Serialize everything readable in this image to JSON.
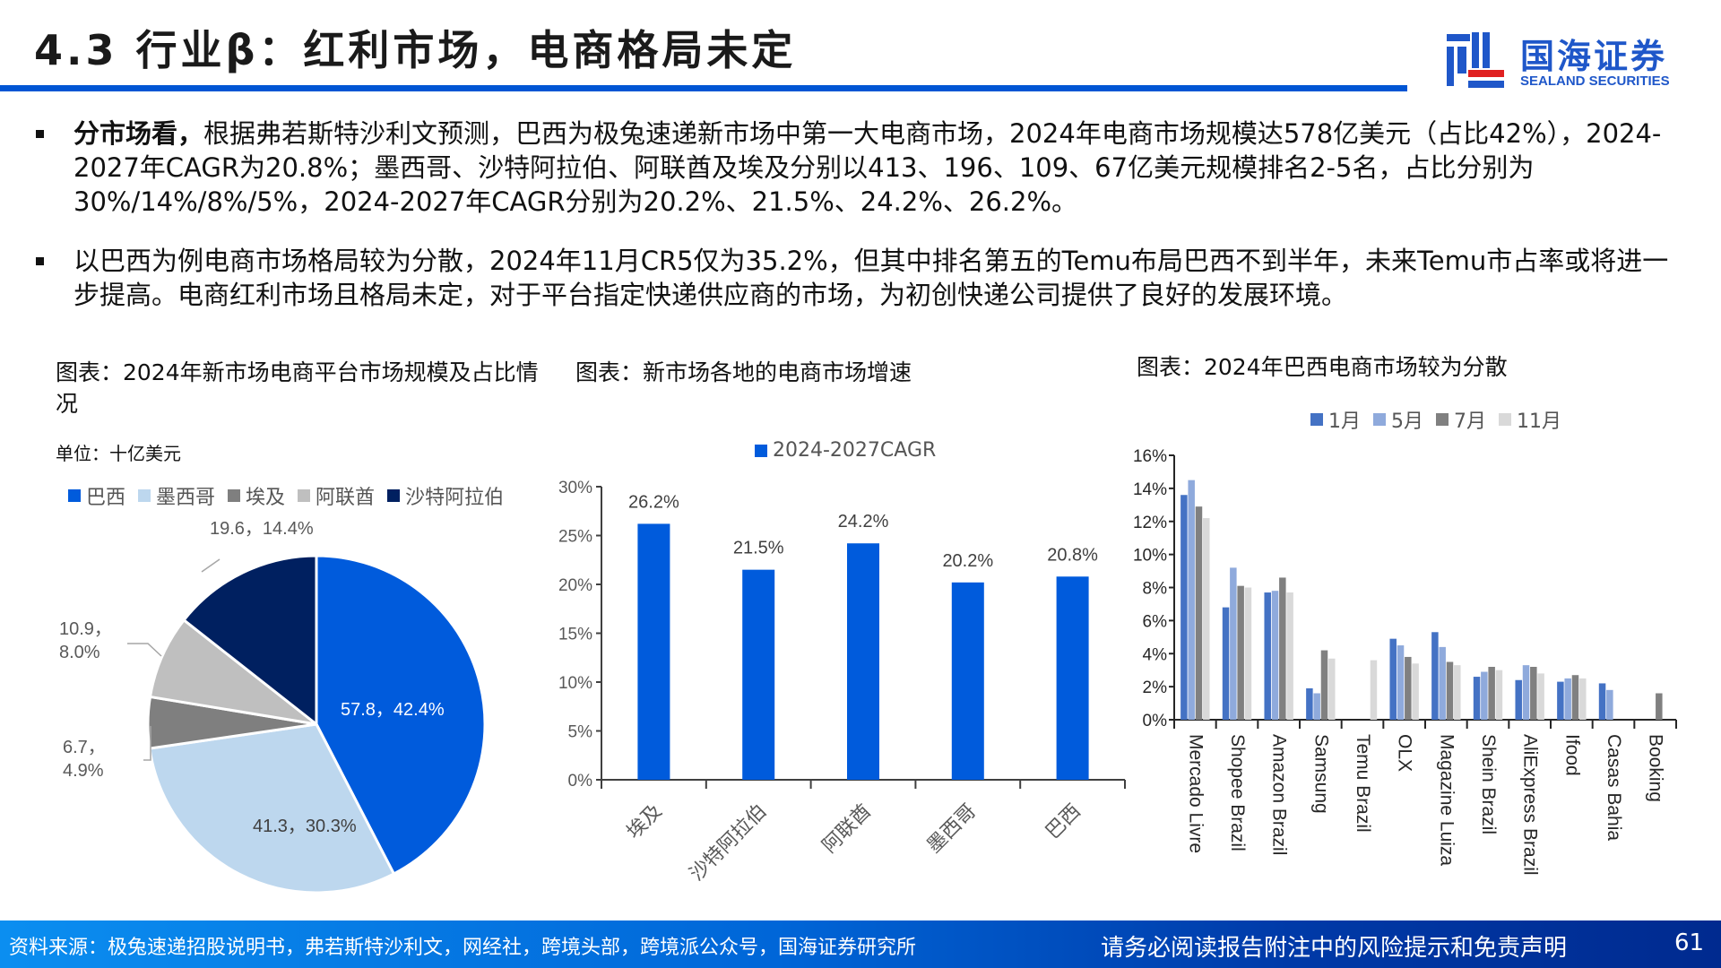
{
  "header": {
    "title": "4.3 行业β：红利市场，电商格局未定",
    "logo": {
      "cn": "国海证券",
      "en": "SEALAND SECURITIES",
      "accent": "#1f57c9",
      "red": "#e02020"
    },
    "rule_color": "#0055d4"
  },
  "bullets": [
    {
      "lead": "分市场看，",
      "text": "根据弗若斯特沙利文预测，巴西为极兔速递新市场中第一大电商市场，2024年电商市场规模达578亿美元（占比42%），2024-2027年CAGR为20.8%；墨西哥、沙特阿拉伯、阿联酋及埃及分别以413、196、109、67亿美元规模排名2-5名，占比分别为30%/14%/8%/5%，2024-2027年CAGR分别为20.2%、21.5%、24.2%、26.2%。"
    },
    {
      "lead": "",
      "text": "以巴西为例电商市场格局较为分散，2024年11月CR5仅为35.2%，但其中排名第五的Temu布局巴西不到半年，未来Temu市占率或将进一步提高。电商红利市场且格局未定，对于平台指定快递供应商的市场，为初创快递公司提供了良好的发展环境。"
    }
  ],
  "charts": {
    "pie": {
      "title": "图表：2024年新市场电商平台市场规模及占比情况",
      "unit": "单位：十亿美元"
    },
    "bar": {
      "title": "图表：新市场各地的电商市场增速"
    },
    "grouped": {
      "title": "图表：2024年巴西电商市场较为分散"
    }
  },
  "chart_data": [
    {
      "type": "pie",
      "title": "图表：2024年新市场电商平台市场规模及占比情况",
      "unit": "单位：十亿美元",
      "legend_position": "top",
      "categories": [
        "巴西",
        "墨西哥",
        "埃及",
        "阿联酋",
        "沙特阿拉伯"
      ],
      "values": [
        57.8,
        41.3,
        6.7,
        10.9,
        19.6
      ],
      "percent": [
        42.4,
        30.3,
        4.9,
        8.0,
        14.4
      ],
      "labels": [
        "57.8，42.4%",
        "41.3，30.3%",
        "6.7，4.9%",
        "10.9，8.0%",
        "19.6，14.4%"
      ],
      "colors": [
        "#005bdc",
        "#bdd7ee",
        "#7f7f7f",
        "#bfbfbf",
        "#002060"
      ]
    },
    {
      "type": "bar",
      "title": "图表：新市场各地的电商市场增速",
      "legend": [
        "2024-2027CAGR"
      ],
      "categories": [
        "埃及",
        "沙特阿拉伯",
        "阿联酋",
        "墨西哥",
        "巴西"
      ],
      "values": [
        26.2,
        21.5,
        24.2,
        20.2,
        20.8
      ],
      "labels": [
        "26.2%",
        "21.5%",
        "24.2%",
        "20.2%",
        "20.8%"
      ],
      "ylim": [
        0,
        30
      ],
      "yticks": [
        "0%",
        "5%",
        "10%",
        "15%",
        "20%",
        "25%",
        "30%"
      ],
      "color": "#005bdc",
      "grid": false
    },
    {
      "type": "bar",
      "title": "图表：2024年巴西电商市场较为分散",
      "categories": [
        "Mercado Livre",
        "Shopee Brazil",
        "Amazon Brazil",
        "Samsung",
        "Temu Brazil",
        "OLX",
        "Magazine Luiza",
        "Shein Brazil",
        "AliExpress Brazil",
        "Ifood",
        "Casas Bahia",
        "Booking"
      ],
      "series": [
        {
          "name": "1月",
          "color": "#4472c4",
          "values": [
            13.6,
            6.8,
            7.7,
            1.9,
            0,
            4.9,
            5.3,
            2.6,
            2.4,
            2.3,
            2.2,
            0
          ]
        },
        {
          "name": "5月",
          "color": "#8faadc",
          "values": [
            14.5,
            9.2,
            7.8,
            1.6,
            0,
            4.5,
            4.4,
            2.9,
            3.3,
            2.5,
            1.8,
            0
          ]
        },
        {
          "name": "7月",
          "color": "#808080",
          "values": [
            12.9,
            8.1,
            8.6,
            4.2,
            0,
            3.8,
            3.5,
            3.2,
            3.2,
            2.7,
            0,
            1.6
          ]
        },
        {
          "name": "11月",
          "color": "#d9d9d9",
          "values": [
            12.2,
            8.0,
            7.7,
            3.7,
            3.6,
            3.4,
            3.3,
            3.0,
            2.8,
            2.5,
            0,
            0
          ]
        }
      ],
      "ylim": [
        0,
        16
      ],
      "yticks": [
        "0%",
        "2%",
        "4%",
        "6%",
        "8%",
        "10%",
        "12%",
        "14%",
        "16%"
      ],
      "legend_position": "top",
      "grid": false
    }
  ],
  "footer": {
    "source": "资料来源：极兔速递招股说明书，弗若斯特沙利文，网经社，跨境头部，跨境派公众号，国海证券研究所",
    "disclaimer": "请务必阅读报告附注中的风险提示和免责声明",
    "page": "61"
  }
}
